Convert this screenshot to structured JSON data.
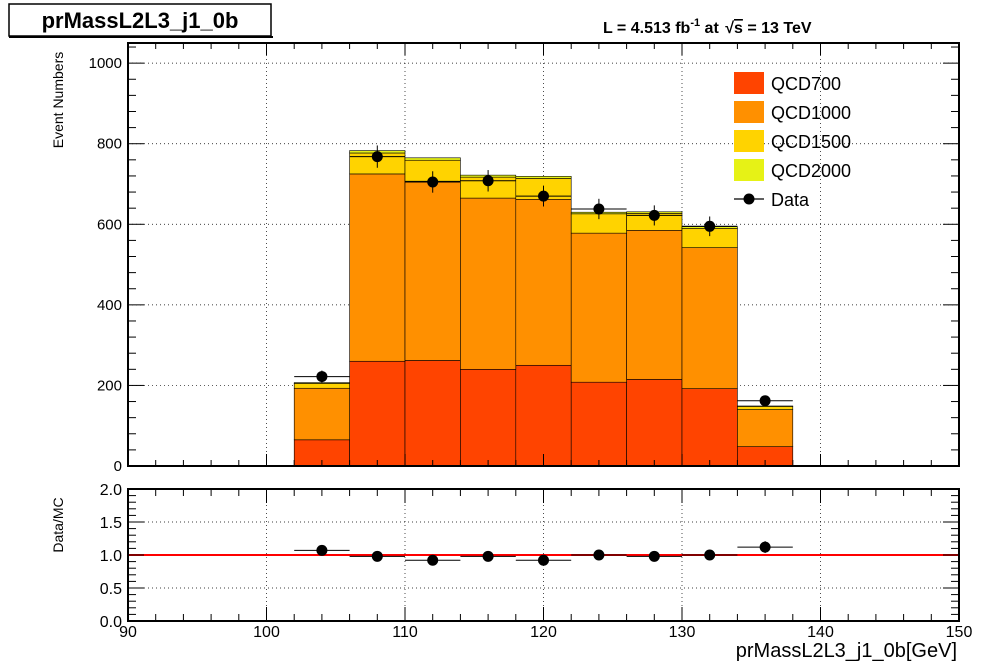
{
  "header": {
    "title": "prMassL2L3_j1_0b",
    "lumi_prefix": "L = 4.513 fb",
    "lumi_exp": "-1",
    "lumi_mid": " at ",
    "lumi_sqrt": "s",
    "lumi_suffix": " = 13 TeV"
  },
  "chart_data": [
    {
      "type": "bar",
      "stacked": true,
      "ylabel": "Event Numbers",
      "xlim": [
        90,
        150
      ],
      "ylim": [
        0,
        1050
      ],
      "grid": true,
      "legend_position": "top-right",
      "y_ticks": [
        "0",
        "200",
        "400",
        "600",
        "800",
        "1000"
      ],
      "bins": [
        [
          102,
          106
        ],
        [
          106,
          110
        ],
        [
          110,
          114
        ],
        [
          114,
          118
        ],
        [
          118,
          122
        ],
        [
          122,
          126
        ],
        [
          126,
          130
        ],
        [
          130,
          134
        ],
        [
          134,
          138
        ]
      ],
      "series": [
        {
          "name": "QCD700",
          "color": "#ff4400",
          "values": [
            65,
            260,
            262,
            240,
            250,
            208,
            215,
            192,
            48
          ]
        },
        {
          "name": "QCD1000",
          "color": "#ff9000",
          "values": [
            128,
            465,
            445,
            425,
            412,
            370,
            370,
            350,
            92
          ]
        },
        {
          "name": "QCD1500",
          "color": "#ffd300",
          "values": [
            12,
            52,
            52,
            52,
            52,
            48,
            42,
            48,
            8
          ]
        },
        {
          "name": "QCD2000",
          "color": "#e6f216",
          "values": [
            2,
            6,
            6,
            5,
            5,
            4,
            4,
            4,
            1
          ]
        }
      ],
      "data_points": {
        "name": "Data",
        "x": [
          104,
          108,
          112,
          116,
          120,
          124,
          128,
          132,
          136
        ],
        "y": [
          222,
          768,
          705,
          708,
          670,
          638,
          622,
          595,
          162
        ]
      }
    },
    {
      "type": "scatter",
      "ylabel": "Data/MC",
      "xlabel": "prMassL2L3_j1_0b[GeV]",
      "xlim": [
        90,
        150
      ],
      "ylim": [
        0,
        2
      ],
      "grid": true,
      "x_ticks": [
        "90",
        "100",
        "110",
        "120",
        "130",
        "140",
        "150"
      ],
      "y_ticks": [
        "0.0",
        "0.5",
        "1.0",
        "1.5",
        "2.0"
      ],
      "reference_line": {
        "y": 1.0,
        "color": "#ff0000"
      },
      "x": [
        104,
        108,
        112,
        116,
        120,
        124,
        128,
        132,
        136
      ],
      "y": [
        1.07,
        0.98,
        0.92,
        0.98,
        0.92,
        1.0,
        0.98,
        1.0,
        1.12
      ],
      "xerr": 2,
      "yerr": [
        0.075,
        0.04,
        0.04,
        0.04,
        0.04,
        0.042,
        0.042,
        0.043,
        0.09
      ]
    }
  ]
}
